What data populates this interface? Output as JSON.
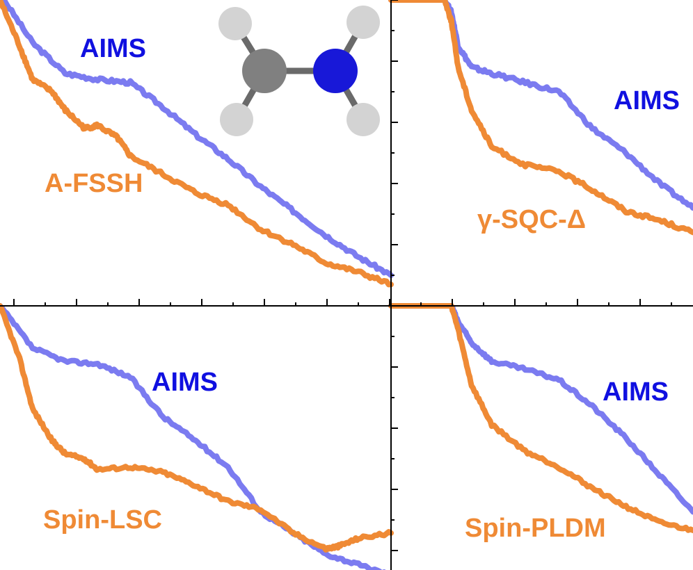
{
  "chart_data": [
    {
      "type": "line",
      "panel": "top-left",
      "series": [
        {
          "name": "AIMS",
          "color": "#7b7bf0",
          "x": [
            0,
            5,
            10,
            15,
            20,
            25,
            30,
            35,
            40,
            45,
            50,
            55,
            60
          ],
          "values": [
            1.02,
            0.86,
            0.76,
            0.74,
            0.73,
            0.65,
            0.56,
            0.48,
            0.39,
            0.31,
            0.23,
            0.16,
            0.1
          ]
        },
        {
          "name": "A-FSSH",
          "color": "#ef8a35",
          "x": [
            0,
            3,
            5,
            8,
            10,
            13,
            15,
            18,
            20,
            25,
            30,
            35,
            40,
            45,
            50,
            55,
            60
          ],
          "values": [
            1.0,
            0.85,
            0.74,
            0.7,
            0.64,
            0.58,
            0.59,
            0.55,
            0.49,
            0.43,
            0.37,
            0.33,
            0.25,
            0.2,
            0.14,
            0.11,
            0.07
          ]
        }
      ]
    },
    {
      "type": "line",
      "panel": "top-right",
      "series": [
        {
          "name": "AIMS",
          "color": "#7b7bf0",
          "x": [
            0,
            8,
            9,
            10,
            12,
            15,
            20,
            25,
            30,
            35,
            40,
            45
          ],
          "values": [
            1.0,
            1.0,
            0.96,
            0.85,
            0.78,
            0.76,
            0.73,
            0.7,
            0.58,
            0.5,
            0.4,
            0.32
          ]
        },
        {
          "name": "γ-SQC-Δ",
          "color": "#ef8a35",
          "x": [
            0,
            8,
            9,
            10,
            12,
            15,
            20,
            25,
            30,
            35,
            40,
            45
          ],
          "values": [
            1.0,
            1.0,
            0.93,
            0.78,
            0.64,
            0.52,
            0.46,
            0.44,
            0.38,
            0.31,
            0.28,
            0.24
          ]
        }
      ]
    },
    {
      "type": "line",
      "panel": "bottom-left",
      "series": [
        {
          "name": "AIMS",
          "color": "#7b7bf0",
          "x": [
            0,
            5,
            10,
            15,
            20,
            25,
            30,
            35,
            40,
            45,
            50,
            55,
            60
          ],
          "values": [
            1.0,
            0.84,
            0.79,
            0.78,
            0.73,
            0.58,
            0.49,
            0.39,
            0.22,
            0.14,
            0.06,
            0.02,
            -0.02
          ]
        },
        {
          "name": "Spin-LSC",
          "color": "#ef8a35",
          "x": [
            0,
            3,
            5,
            8,
            10,
            13,
            15,
            20,
            25,
            30,
            35,
            40,
            45,
            50,
            52,
            55,
            60
          ],
          "values": [
            1.0,
            0.8,
            0.61,
            0.49,
            0.44,
            0.42,
            0.38,
            0.39,
            0.37,
            0.32,
            0.26,
            0.23,
            0.14,
            0.08,
            0.09,
            0.12,
            0.14
          ]
        }
      ]
    },
    {
      "type": "line",
      "panel": "bottom-right",
      "series": [
        {
          "name": "AIMS",
          "color": "#7b7bf0",
          "x": [
            0,
            9,
            10,
            12,
            15,
            20,
            25,
            30,
            35,
            40,
            45
          ],
          "values": [
            1.0,
            1.0,
            0.94,
            0.86,
            0.79,
            0.76,
            0.72,
            0.62,
            0.5,
            0.36,
            0.22
          ]
        },
        {
          "name": "Spin-PLDM",
          "color": "#ef8a35",
          "x": [
            0,
            9,
            10,
            12,
            15,
            20,
            25,
            30,
            35,
            40,
            45
          ],
          "values": [
            1.0,
            1.0,
            0.91,
            0.7,
            0.55,
            0.45,
            0.39,
            0.31,
            0.24,
            0.18,
            0.15
          ]
        }
      ]
    }
  ],
  "molecule": {
    "carbon_color": "#808080",
    "nitrogen_color": "#1818d8",
    "hydrogen_color": "#d3d3d3",
    "bond_color": "#6a6a6a"
  },
  "axis_color": "#000000",
  "aims_label_color": "#1010e0",
  "other_label_color": "#ef8a35"
}
